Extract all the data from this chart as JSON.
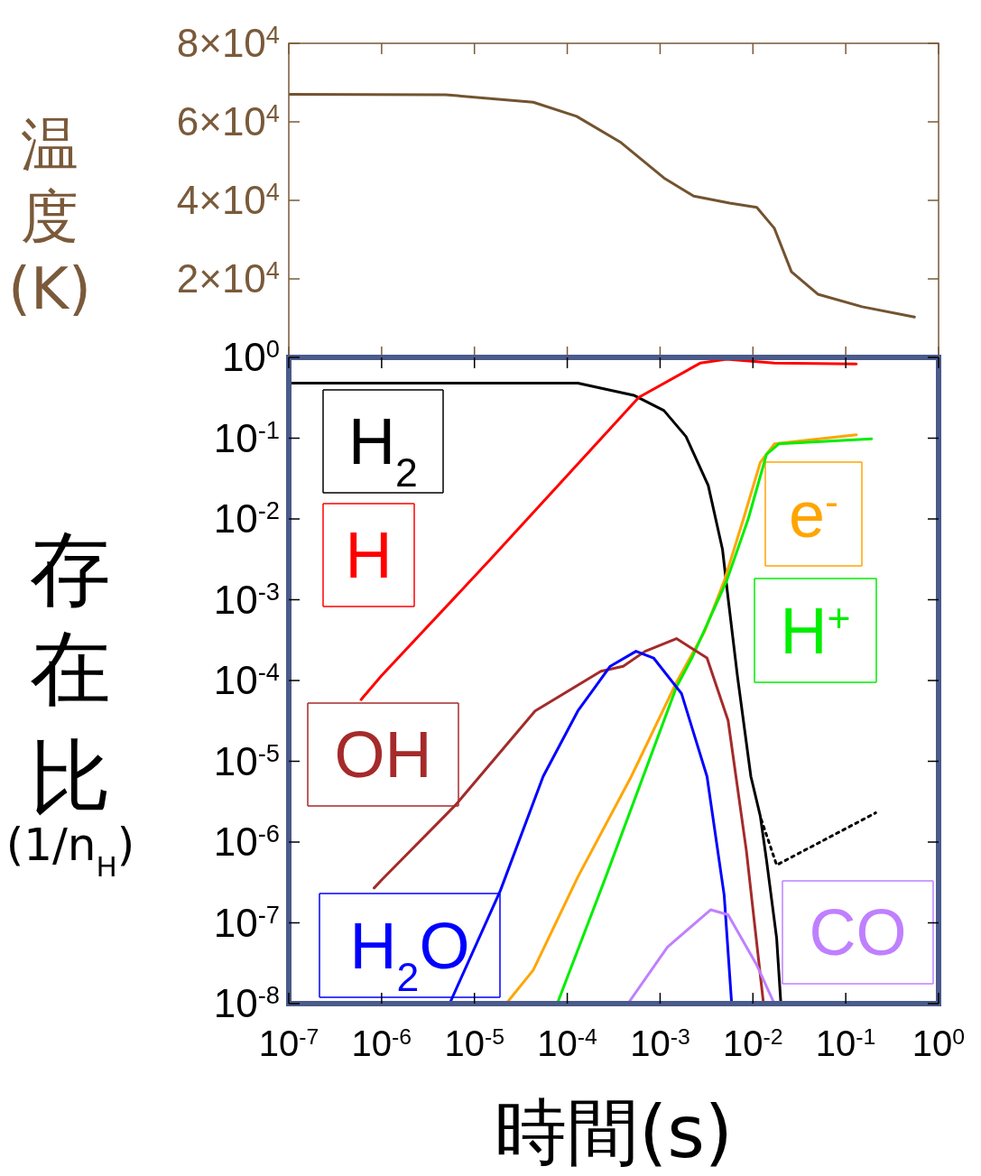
{
  "chart_data": [
    {
      "type": "line",
      "ylabel": "温度(K)",
      "log": "x",
      "tick_labels": "y",
      "xlim": [
        1e-07,
        1
      ],
      "xticks": [
        {
          "value": 1e-07,
          "label": null
        },
        {
          "value": 1e-06,
          "label": null
        },
        {
          "value": 1e-05,
          "label": null
        },
        {
          "value": 0.0001,
          "label": null
        },
        {
          "value": 0.001,
          "label": null
        },
        {
          "value": 0.01,
          "label": null
        },
        {
          "value": 0.1,
          "label": null
        },
        {
          "value": 1,
          "label": null
        }
      ],
      "ylim": [
        0,
        80000
      ],
      "yticks": [
        {
          "value": 20000,
          "label": "2×10$^{4}$"
        },
        {
          "value": 40000,
          "label": "4×10$^{4}$"
        },
        {
          "value": 60000,
          "label": "6×10$^{4}$"
        },
        {
          "value": 80000,
          "label": "8×10$^{4}$"
        }
      ],
      "series": [
        {
          "color": "#735330",
          "x": [
            1e-07,
            4.9e-06,
            4.3e-05,
            0.000126,
            0.00038,
            0.0011,
            0.0023,
            0.0056,
            0.011,
            0.017,
            0.026,
            0.05,
            0.15,
            0.55
          ],
          "values": [
            67000,
            66900,
            65000,
            61400,
            54700,
            45700,
            41100,
            39300,
            38200,
            32900,
            21800,
            16100,
            12900,
            10300
          ]
        }
      ]
    },
    {
      "type": "line",
      "legend": "left",
      "xlabel": "時間(s)",
      "ylabel": "存在比(1/n$_{H}$)",
      "log": "xy",
      "xlim": [
        1e-07,
        1
      ],
      "xticks": [
        {
          "value": 1e-07,
          "label": "10$^{-7}$"
        },
        {
          "value": 1e-06,
          "label": "10$^{-6}$"
        },
        {
          "value": 1e-05,
          "label": "10$^{-5}$"
        },
        {
          "value": 0.0001,
          "label": "10$^{-4}$"
        },
        {
          "value": 0.001,
          "label": "10$^{-3}$"
        },
        {
          "value": 0.01,
          "label": "10$^{-2}$"
        },
        {
          "value": 0.1,
          "label": "10$^{-1}$"
        },
        {
          "value": 1,
          "label": "10$^{0}$"
        }
      ],
      "ylim": [
        1e-08,
        1
      ],
      "yticks": [
        {
          "value": 1e-08,
          "label": "10$^{-8}$"
        },
        {
          "value": 1e-07,
          "label": "10$^{-7}$"
        },
        {
          "value": 1e-06,
          "label": "10$^{-6}$"
        },
        {
          "value": 1e-05,
          "label": "10$^{-5}$"
        },
        {
          "value": 0.0001,
          "label": "10$^{-4}$"
        },
        {
          "value": 0.001,
          "label": "10$^{-3}$"
        },
        {
          "value": 0.01,
          "label": "10$^{-2}$"
        },
        {
          "value": 0.1,
          "label": "10$^{-1}$"
        },
        {
          "value": 1,
          "label": "10$^{0}$"
        }
      ],
      "series": [
        {
          "name": "H$_{2}$",
          "color": "#000000",
          "x": [
            1e-07,
            0.00013,
            0.00052,
            0.0011,
            0.0019,
            0.0033,
            0.0047,
            0.0054,
            0.0068,
            0.0095,
            0.012,
            0.014,
            0.018,
            0.02
          ],
          "values": [
            0.48,
            0.48,
            0.34,
            0.22,
            0.105,
            0.026,
            0.0042,
            0.00105,
            0.000115,
            6.5e-06,
            2.1e-06,
            6e-07,
            6.5e-08,
            1e-08
          ]
        },
        {
          "name": "H",
          "color": "#ff0000",
          "x": [
            6e-07,
            1e-06,
            1.5e-05,
            0.00059,
            0.0027,
            0.0052,
            0.017,
            0.13
          ],
          "values": [
            5.8e-05,
            0.000115,
            0.0032,
            0.32,
            0.85,
            0.95,
            0.85,
            0.83
          ]
        },
        {
          "name": "e$^{-}$",
          "color": "#ffa500",
          "x": [
            2.2e-05,
            4.3e-05,
            0.00013,
            0.00049,
            0.0015,
            0.003,
            0.0049,
            0.0079,
            0.012,
            0.017,
            0.13
          ],
          "values": [
            1e-08,
            2.6e-08,
            3.7e-07,
            6.5e-06,
            9.5e-05,
            0.0004,
            0.0017,
            0.01,
            0.05,
            0.085,
            0.11
          ]
        },
        {
          "name": "H$^{+}$",
          "color": "#00ee00",
          "x": [
            7.8e-05,
            0.00026,
            0.0015,
            0.0022,
            0.0052,
            0.0089,
            0.014,
            0.019,
            0.19
          ],
          "values": [
            1e-08,
            3.7e-07,
            8.3e-05,
            0.00019,
            0.0017,
            0.01,
            0.063,
            0.085,
            0.098
          ]
        },
        {
          "name": "OH",
          "color": "#a52a2a",
          "x": [
            8.3e-07,
            1e-06,
            6.3e-06,
            4.5e-05,
            0.00023,
            0.0004,
            0.00069,
            0.0015,
            0.0032,
            0.0054,
            0.0085,
            0.013
          ],
          "values": [
            2.7e-07,
            3.4e-07,
            2.9e-06,
            4.2e-05,
            0.00013,
            0.00015,
            0.00023,
            0.00033,
            0.00019,
            3.2e-05,
            7.8e-07,
            1e-08
          ]
        },
        {
          "name": "H$_{2}$O",
          "color": "#0000ff",
          "x": [
            5.4e-06,
            1.9e-05,
            5.5e-05,
            0.00013,
            0.00029,
            0.00055,
            0.00085,
            0.0017,
            0.0032,
            0.0049,
            0.0059
          ],
          "values": [
            1e-08,
            2.5e-07,
            6.5e-06,
            4.2e-05,
            0.00015,
            0.00023,
            0.00019,
            6.9e-05,
            6.5e-06,
            2.2e-07,
            1e-08
          ]
        },
        {
          "name": "CO",
          "color": "#bf80ff",
          "x": [
            0.00045,
            0.0012,
            0.0035,
            0.0054,
            0.011,
            0.017
          ],
          "values": [
            1e-08,
            5e-08,
            1.45e-07,
            1.26e-07,
            3e-08,
            1e-08
          ]
        },
        {
          "color": "#000000",
          "line_style": "dotted",
          "x": [
            0.0123,
            0.018,
            0.21
          ],
          "values": [
            1.9e-06,
            5.2e-07,
            2.3e-06
          ]
        }
      ]
    }
  ]
}
